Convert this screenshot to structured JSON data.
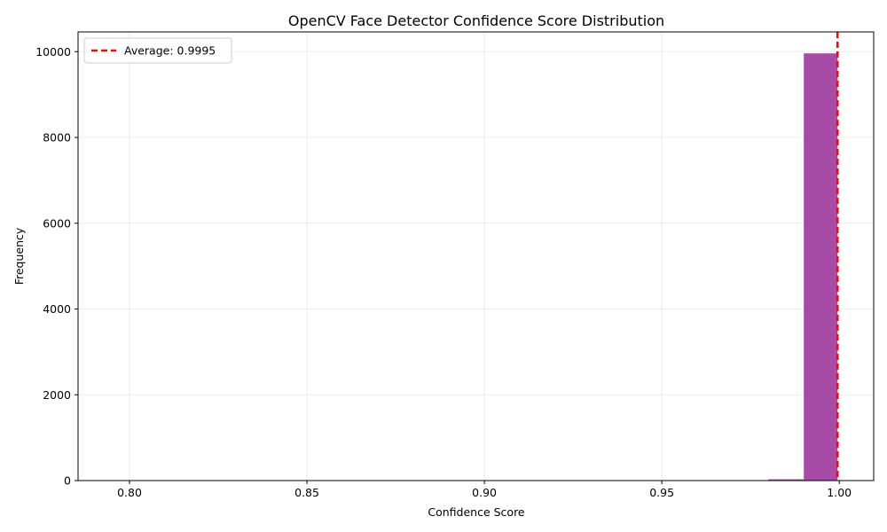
{
  "chart_data": {
    "type": "histogram",
    "title": "OpenCV Face Detector Confidence Score Distribution",
    "xlabel": "Confidence Score",
    "ylabel": "Frequency",
    "xlim": [
      0.7855,
      1.0097
    ],
    "ylim": [
      0,
      10460
    ],
    "xticks": [
      0.8,
      0.85,
      0.9,
      0.95,
      1.0
    ],
    "xtick_labels": [
      "0.80",
      "0.85",
      "0.90",
      "0.95",
      "1.00"
    ],
    "yticks": [
      0,
      2000,
      4000,
      6000,
      8000,
      10000
    ],
    "ytick_labels": [
      "0",
      "2000",
      "4000",
      "6000",
      "8000",
      "10000"
    ],
    "bins": [
      {
        "x0": 0.96,
        "x1": 0.97,
        "value": 5
      },
      {
        "x0": 0.97,
        "x1": 0.98,
        "value": 10
      },
      {
        "x0": 0.98,
        "x1": 0.99,
        "value": 30
      },
      {
        "x0": 0.99,
        "x1": 0.9995,
        "value": 9960
      }
    ],
    "bar_color": "#a64ca6",
    "average": {
      "value": 0.9995,
      "label": "Average: 0.9995",
      "color": "#ff0000"
    },
    "grid": true,
    "legend_position": "top-left"
  }
}
